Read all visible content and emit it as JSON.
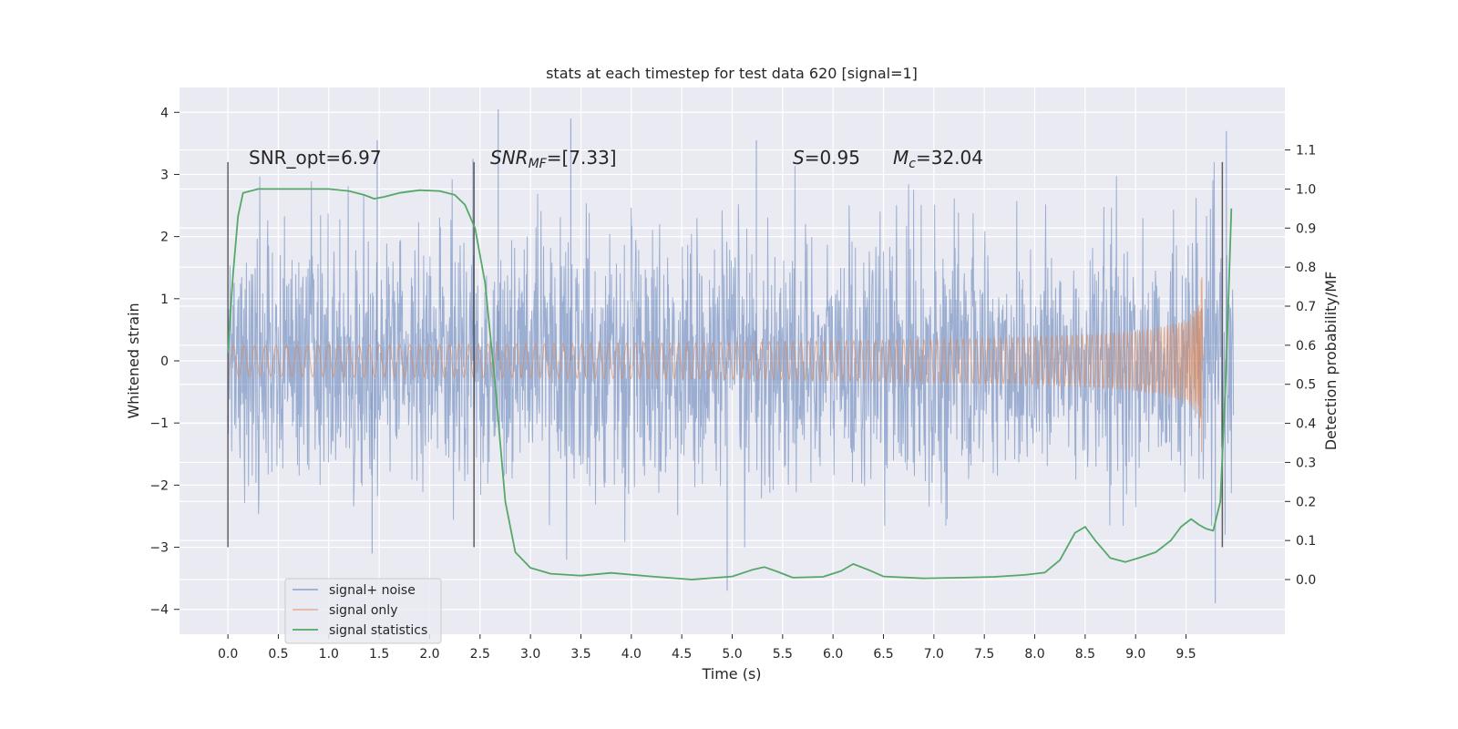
{
  "chart_data": {
    "type": "line",
    "title": "stats at each timestep for test data 620 [signal=1]",
    "xlabel": "Time (s)",
    "ylabel": "Whitened strain",
    "ylabel_right": "Detection probability/MF",
    "xlim": [
      -0.48,
      10.48
    ],
    "ylim": [
      -4.4,
      4.4
    ],
    "ylim_right": [
      -0.14,
      1.26
    ],
    "x_ticks": [
      "0.0",
      "0.5",
      "1.0",
      "1.5",
      "2.0",
      "2.5",
      "3.0",
      "3.5",
      "4.0",
      "4.5",
      "5.0",
      "5.5",
      "6.0",
      "6.5",
      "7.0",
      "7.5",
      "8.0",
      "8.5",
      "9.0",
      "9.5"
    ],
    "x_tick_values": [
      0,
      0.5,
      1,
      1.5,
      2,
      2.5,
      3,
      3.5,
      4,
      4.5,
      5,
      5.5,
      6,
      6.5,
      7,
      7.5,
      8,
      8.5,
      9,
      9.5
    ],
    "y_ticks": [
      "−4",
      "−3",
      "−2",
      "−1",
      "0",
      "1",
      "2",
      "3",
      "4"
    ],
    "y_tick_values": [
      -4,
      -3,
      -2,
      -1,
      0,
      1,
      2,
      3,
      4
    ],
    "y_right_ticks": [
      "0.0",
      "0.1",
      "0.2",
      "0.3",
      "0.4",
      "0.5",
      "0.6",
      "0.7",
      "0.8",
      "0.9",
      "1.0",
      "1.1"
    ],
    "y_right_tick_values": [
      0,
      0.1,
      0.2,
      0.3,
      0.4,
      0.5,
      0.6,
      0.7,
      0.8,
      0.9,
      1.0,
      1.1
    ],
    "grid": true,
    "legend_position": "lower-left",
    "annotations": {
      "snr_opt": "SNR_opt=6.97",
      "snr_mf_main": "SNR",
      "snr_mf_sub": "MF",
      "snr_mf_rest": "=[7.33]",
      "s_main": "S",
      "s_rest": "=0.95",
      "mc_main": "M",
      "mc_sub": "c",
      "mc_rest": "=32.04"
    },
    "vertical_markers": {
      "x": [
        0.0,
        2.44,
        9.86
      ],
      "y_range": [
        -3.0,
        3.2
      ]
    },
    "series": [
      {
        "name": "signal+ noise",
        "color": "#4c72b0",
        "kind": "noise",
        "x_range": [
          0.0,
          9.97
        ],
        "typical_amplitude": 1.0,
        "peak_points": [
          {
            "x": 1.43,
            "y": -3.1
          },
          {
            "x": 1.48,
            "y": 3.55
          },
          {
            "x": 2.43,
            "y": 3.25
          },
          {
            "x": 2.68,
            "y": 4.05
          },
          {
            "x": 3.4,
            "y": 3.9
          },
          {
            "x": 4.95,
            "y": -3.7
          },
          {
            "x": 5.24,
            "y": 3.55
          },
          {
            "x": 9.79,
            "y": -3.9
          },
          {
            "x": 9.9,
            "y": 3.7
          }
        ]
      },
      {
        "name": "signal only",
        "color": "#dd8452",
        "kind": "chirp",
        "x_range": [
          0.0,
          9.68
        ],
        "merger_x": 9.66,
        "peak_amplitude": 1.75
      },
      {
        "name": "signal statistics",
        "color": "#55a868",
        "kind": "line",
        "axis": "right",
        "points": [
          [
            0.0,
            0.58
          ],
          [
            0.05,
            0.78
          ],
          [
            0.1,
            0.93
          ],
          [
            0.15,
            0.99
          ],
          [
            0.3,
            1.0
          ],
          [
            0.6,
            1.0
          ],
          [
            1.0,
            1.0
          ],
          [
            1.2,
            0.995
          ],
          [
            1.35,
            0.985
          ],
          [
            1.45,
            0.975
          ],
          [
            1.55,
            0.98
          ],
          [
            1.7,
            0.99
          ],
          [
            1.9,
            0.997
          ],
          [
            2.1,
            0.995
          ],
          [
            2.25,
            0.985
          ],
          [
            2.35,
            0.96
          ],
          [
            2.45,
            0.9
          ],
          [
            2.55,
            0.76
          ],
          [
            2.65,
            0.5
          ],
          [
            2.75,
            0.2
          ],
          [
            2.85,
            0.07
          ],
          [
            3.0,
            0.03
          ],
          [
            3.2,
            0.015
          ],
          [
            3.5,
            0.01
          ],
          [
            3.8,
            0.017
          ],
          [
            4.2,
            0.008
          ],
          [
            4.6,
            0.0
          ],
          [
            5.0,
            0.008
          ],
          [
            5.2,
            0.025
          ],
          [
            5.32,
            0.032
          ],
          [
            5.45,
            0.02
          ],
          [
            5.6,
            0.005
          ],
          [
            5.9,
            0.007
          ],
          [
            6.08,
            0.022
          ],
          [
            6.2,
            0.04
          ],
          [
            6.35,
            0.025
          ],
          [
            6.5,
            0.008
          ],
          [
            6.9,
            0.003
          ],
          [
            7.3,
            0.005
          ],
          [
            7.6,
            0.007
          ],
          [
            7.9,
            0.012
          ],
          [
            8.1,
            0.018
          ],
          [
            8.25,
            0.05
          ],
          [
            8.4,
            0.12
          ],
          [
            8.5,
            0.135
          ],
          [
            8.6,
            0.1
          ],
          [
            8.75,
            0.055
          ],
          [
            8.9,
            0.045
          ],
          [
            9.05,
            0.057
          ],
          [
            9.2,
            0.07
          ],
          [
            9.35,
            0.1
          ],
          [
            9.45,
            0.135
          ],
          [
            9.55,
            0.155
          ],
          [
            9.63,
            0.14
          ],
          [
            9.7,
            0.13
          ],
          [
            9.77,
            0.125
          ],
          [
            9.84,
            0.2
          ],
          [
            9.9,
            0.55
          ],
          [
            9.95,
            0.95
          ]
        ]
      }
    ]
  }
}
